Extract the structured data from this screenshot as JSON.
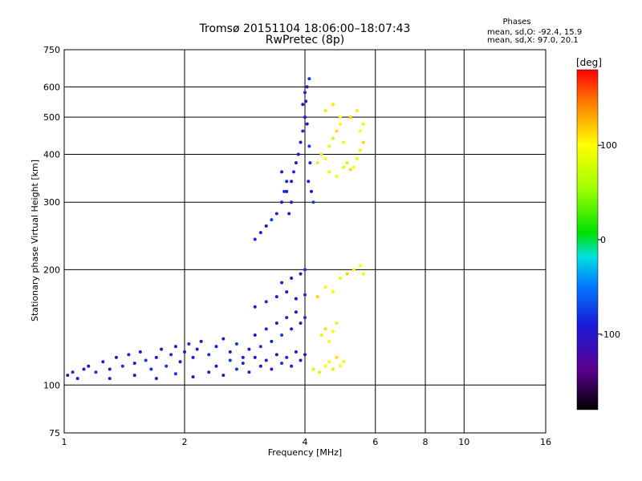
{
  "chart_data": {
    "type": "scatter",
    "title": "Tromsø 20151104 18:06:00–18:07:43",
    "subtitle": "RwPretec (8p)",
    "stats": {
      "heading": "Phases",
      "line1": "mean, sd,O: -92.4, 15.9",
      "line2": "mean, sd,X:  97.0, 20.1"
    },
    "xlabel": "Frequency [MHz]",
    "ylabel": "Stationary phase Virtual Height [km]",
    "x_scale": "log",
    "y_scale": "log",
    "xlim": [
      1,
      16
    ],
    "ylim": [
      75,
      750
    ],
    "x_ticks": [
      1,
      2,
      4,
      6,
      8,
      10,
      16
    ],
    "x_tick_labels": [
      "1",
      "2",
      "4",
      "6",
      "8",
      "10",
      "16"
    ],
    "x_gridlines": [
      2,
      4,
      6,
      8,
      10
    ],
    "y_ticks": [
      75,
      100,
      200,
      300,
      400,
      500,
      600,
      750
    ],
    "y_tick_labels": [
      "75",
      "100",
      "200",
      "300",
      "400",
      "500",
      "600",
      "750"
    ],
    "y_gridlines": [
      100,
      200,
      300,
      400,
      500,
      600
    ],
    "grid": true,
    "colorbar": {
      "label": "[deg]",
      "min": -180,
      "max": 180,
      "ticks": [
        100,
        0,
        -100
      ],
      "tick_labels": [
        "100",
        "0",
        "-100"
      ],
      "colormap": "rainbow: black (-180) → purple → blue → cyan → green (0) → yellow → orange → red (180)"
    },
    "series": [
      {
        "name": "O",
        "mean_phase": -92.4,
        "sd_phase": 15.9,
        "points": [
          [
            1.02,
            106
          ],
          [
            1.05,
            108
          ],
          [
            1.08,
            104
          ],
          [
            1.12,
            110
          ],
          [
            1.15,
            112
          ],
          [
            1.2,
            108
          ],
          [
            1.25,
            115
          ],
          [
            1.3,
            110
          ],
          [
            1.35,
            118
          ],
          [
            1.4,
            112
          ],
          [
            1.45,
            120
          ],
          [
            1.5,
            114
          ],
          [
            1.55,
            122
          ],
          [
            1.6,
            116
          ],
          [
            1.65,
            110
          ],
          [
            1.7,
            118
          ],
          [
            1.75,
            124
          ],
          [
            1.8,
            112
          ],
          [
            1.85,
            120
          ],
          [
            1.9,
            126
          ],
          [
            1.95,
            115
          ],
          [
            2.0,
            122
          ],
          [
            2.05,
            128
          ],
          [
            2.1,
            118
          ],
          [
            2.15,
            124
          ],
          [
            2.2,
            130
          ],
          [
            2.3,
            120
          ],
          [
            2.4,
            126
          ],
          [
            2.5,
            132
          ],
          [
            2.6,
            122
          ],
          [
            2.7,
            128
          ],
          [
            2.8,
            118
          ],
          [
            2.9,
            124
          ],
          [
            3.0,
            135
          ],
          [
            3.1,
            126
          ],
          [
            3.2,
            140
          ],
          [
            3.3,
            130
          ],
          [
            3.4,
            145
          ],
          [
            3.5,
            135
          ],
          [
            3.6,
            150
          ],
          [
            3.7,
            140
          ],
          [
            3.8,
            155
          ],
          [
            3.9,
            145
          ],
          [
            4.0,
            150
          ],
          [
            1.3,
            104
          ],
          [
            1.5,
            106
          ],
          [
            1.7,
            104
          ],
          [
            1.9,
            107
          ],
          [
            2.1,
            105
          ],
          [
            2.3,
            108
          ],
          [
            2.5,
            106
          ],
          [
            2.7,
            110
          ],
          [
            2.9,
            108
          ],
          [
            3.1,
            112
          ],
          [
            3.3,
            110
          ],
          [
            3.5,
            114
          ],
          [
            3.7,
            112
          ],
          [
            3.9,
            116
          ],
          [
            2.4,
            112
          ],
          [
            2.6,
            116
          ],
          [
            2.8,
            114
          ],
          [
            3.0,
            118
          ],
          [
            3.2,
            116
          ],
          [
            3.4,
            120
          ],
          [
            3.6,
            118
          ],
          [
            3.8,
            122
          ],
          [
            4.0,
            120
          ],
          [
            3.0,
            160
          ],
          [
            3.2,
            165
          ],
          [
            3.4,
            170
          ],
          [
            3.6,
            175
          ],
          [
            3.8,
            168
          ],
          [
            4.0,
            172
          ],
          [
            3.5,
            185
          ],
          [
            3.7,
            190
          ],
          [
            3.9,
            195
          ],
          [
            4.0,
            200
          ],
          [
            3.0,
            240
          ],
          [
            3.1,
            250
          ],
          [
            3.2,
            260
          ],
          [
            3.3,
            270
          ],
          [
            3.4,
            280
          ],
          [
            3.5,
            300
          ],
          [
            3.6,
            320
          ],
          [
            3.7,
            340
          ],
          [
            3.75,
            360
          ],
          [
            3.8,
            380
          ],
          [
            3.85,
            400
          ],
          [
            3.9,
            430
          ],
          [
            3.95,
            460
          ],
          [
            4.0,
            500
          ],
          [
            4.02,
            550
          ],
          [
            4.05,
            600
          ],
          [
            4.1,
            630
          ],
          [
            4.0,
            580
          ],
          [
            3.95,
            540
          ],
          [
            4.05,
            480
          ],
          [
            4.1,
            420
          ],
          [
            4.12,
            380
          ],
          [
            4.08,
            340
          ],
          [
            4.15,
            320
          ],
          [
            4.2,
            300
          ],
          [
            3.6,
            340
          ],
          [
            3.5,
            360
          ],
          [
            3.7,
            300
          ],
          [
            3.65,
            280
          ],
          [
            3.55,
            320
          ]
        ]
      },
      {
        "name": "X",
        "mean_phase": 97.0,
        "sd_phase": 20.1,
        "points": [
          [
            4.2,
            110
          ],
          [
            4.35,
            108
          ],
          [
            4.5,
            112
          ],
          [
            4.6,
            115
          ],
          [
            4.7,
            110
          ],
          [
            4.8,
            118
          ],
          [
            4.9,
            112
          ],
          [
            5.0,
            115
          ],
          [
            4.4,
            135
          ],
          [
            4.5,
            140
          ],
          [
            4.6,
            130
          ],
          [
            4.7,
            138
          ],
          [
            4.8,
            145
          ],
          [
            4.3,
            170
          ],
          [
            4.5,
            180
          ],
          [
            4.7,
            175
          ],
          [
            4.9,
            190
          ],
          [
            5.1,
            195
          ],
          [
            5.3,
            200
          ],
          [
            5.5,
            205
          ],
          [
            5.6,
            195
          ],
          [
            4.3,
            380
          ],
          [
            4.4,
            400
          ],
          [
            4.5,
            390
          ],
          [
            4.6,
            420
          ],
          [
            4.7,
            440
          ],
          [
            4.8,
            460
          ],
          [
            4.9,
            480
          ],
          [
            5.0,
            430
          ],
          [
            5.1,
            380
          ],
          [
            5.2,
            365
          ],
          [
            5.3,
            370
          ],
          [
            5.4,
            390
          ],
          [
            5.5,
            410
          ],
          [
            5.6,
            430
          ],
          [
            4.6,
            360
          ],
          [
            4.8,
            350
          ],
          [
            5.0,
            370
          ],
          [
            5.2,
            500
          ],
          [
            5.4,
            520
          ],
          [
            5.5,
            460
          ],
          [
            5.6,
            480
          ],
          [
            4.5,
            520
          ],
          [
            4.7,
            540
          ],
          [
            4.9,
            500
          ]
        ]
      }
    ]
  }
}
